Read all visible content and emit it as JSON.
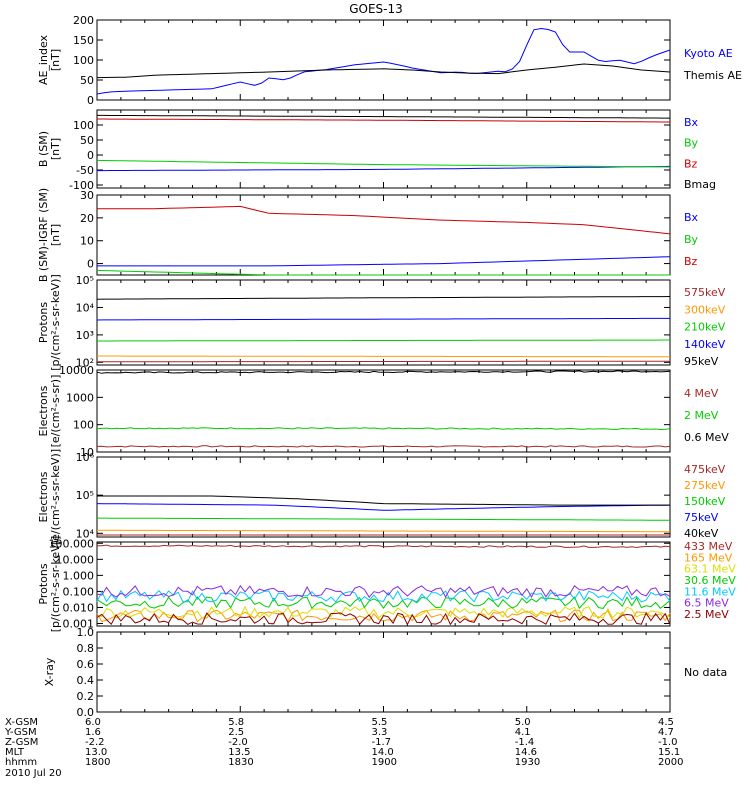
{
  "title": "GOES-13",
  "colors": {
    "black": "#000000",
    "blue": "#0000ff",
    "green": "#00cc00",
    "red": "#cc0000",
    "darkred": "#a52a2a",
    "orange": "#ff9900",
    "yellow": "#dddd00",
    "cyan": "#00c8ff",
    "purple": "#8a2be2",
    "maroon": "#8b0000"
  },
  "chart_data": [
    {
      "type": "line",
      "ylabel": "AE_index\n[nT]",
      "ylim": [
        0,
        200
      ],
      "scale": "linear",
      "ticks": [
        0,
        50,
        100,
        150,
        200
      ],
      "tick_labels": [
        "0",
        "50",
        "100",
        "150",
        "200"
      ],
      "series": [
        {
          "name": "Kyoto AE",
          "color": "#0000ff",
          "x": [
            0,
            0.02,
            0.05,
            0.1,
            0.15,
            0.2,
            0.25,
            0.28,
            0.3,
            0.33,
            0.36,
            0.4,
            0.45,
            0.5,
            0.52,
            0.55,
            0.6,
            0.63,
            0.66,
            0.7,
            0.72,
            0.74,
            0.76,
            0.78,
            0.8,
            0.82,
            0.85,
            0.88,
            0.91,
            0.94,
            0.97,
            1.0
          ],
          "y": [
            15,
            20,
            22,
            24,
            26,
            28,
            45,
            35,
            55,
            50,
            70,
            76,
            88,
            95,
            90,
            80,
            68,
            70,
            66,
            72,
            70,
            100,
            175,
            180,
            170,
            120,
            120,
            95,
            100,
            90,
            110,
            125
          ]
        },
        {
          "name": "Themis AE",
          "color": "#000000",
          "x": [
            0,
            0.05,
            0.1,
            0.2,
            0.3,
            0.4,
            0.5,
            0.55,
            0.6,
            0.65,
            0.7,
            0.75,
            0.8,
            0.85,
            0.9,
            0.95,
            1.0
          ],
          "y": [
            56,
            57,
            62,
            66,
            70,
            75,
            78,
            75,
            70,
            67,
            66,
            75,
            82,
            90,
            85,
            75,
            70
          ]
        }
      ]
    },
    {
      "type": "line",
      "ylabel": "B (SM)\n[nT]",
      "ylim": [
        -110,
        150
      ],
      "scale": "linear",
      "ticks": [
        -100,
        -50,
        0,
        50,
        100
      ],
      "tick_labels": [
        "-100",
        "-50",
        "0",
        "50",
        "100"
      ],
      "series": [
        {
          "name": "Bx",
          "color": "#0000ff",
          "x": [
            0,
            0.5,
            1.0
          ],
          "y": [
            -52,
            -48,
            -38
          ]
        },
        {
          "name": "By",
          "color": "#00cc00",
          "x": [
            0,
            0.5,
            1.0
          ],
          "y": [
            -18,
            -32,
            -40
          ]
        },
        {
          "name": "Bz",
          "color": "#cc0000",
          "x": [
            0,
            0.5,
            1.0
          ],
          "y": [
            120,
            116,
            110
          ]
        },
        {
          "name": "Bmag",
          "color": "#000000",
          "x": [
            0,
            0.5,
            1.0
          ],
          "y": [
            132,
            128,
            123
          ]
        }
      ]
    },
    {
      "type": "line",
      "ylabel": "B (SM)-IGRF (SM)\n[nT]",
      "ylim": [
        -5,
        30
      ],
      "scale": "linear",
      "ticks": [
        0,
        10,
        20,
        30
      ],
      "tick_labels": [
        "0",
        "10",
        "20",
        "30"
      ],
      "series": [
        {
          "name": "Bx",
          "color": "#0000ff",
          "x": [
            0,
            0.3,
            0.6,
            1.0
          ],
          "y": [
            -1,
            -1,
            0,
            3
          ]
        },
        {
          "name": "By",
          "color": "#00cc00",
          "x": [
            0,
            0.3,
            0.6,
            1.0
          ],
          "y": [
            -3,
            -5,
            -7,
            -6
          ]
        },
        {
          "name": "Bz",
          "color": "#cc0000",
          "x": [
            0,
            0.1,
            0.25,
            0.3,
            0.45,
            0.6,
            0.75,
            0.85,
            1.0
          ],
          "y": [
            24,
            24,
            25,
            22,
            21,
            19,
            18,
            17,
            13
          ]
        }
      ]
    },
    {
      "type": "line",
      "ylabel": "Protons\n[p/(cm²-s-sr-keV)]",
      "ylim": [
        80,
        100000
      ],
      "scale": "log",
      "ticks": [
        100,
        1000,
        10000,
        100000
      ],
      "tick_labels": [
        "10²",
        "10³",
        "10⁴",
        "10⁵"
      ],
      "series": [
        {
          "name": "575keV",
          "color": "#a52a2a",
          "x": [
            0,
            1.0
          ],
          "y": [
            105,
            110
          ]
        },
        {
          "name": "300keV",
          "color": "#ff9900",
          "x": [
            0,
            1.0
          ],
          "y": [
            170,
            160
          ]
        },
        {
          "name": "210keV",
          "color": "#00cc00",
          "x": [
            0,
            1.0
          ],
          "y": [
            600,
            650
          ]
        },
        {
          "name": "140keV",
          "color": "#0000ff",
          "x": [
            0,
            1.0
          ],
          "y": [
            3500,
            4000
          ]
        },
        {
          "name": "95keV",
          "color": "#000000",
          "x": [
            0,
            1.0
          ],
          "y": [
            20000,
            25000
          ]
        }
      ]
    },
    {
      "type": "line",
      "ylabel": "Electrons\n[e/(cm²-s-sr)]",
      "ylim": [
        10,
        10000
      ],
      "scale": "log",
      "ticks": [
        10,
        100,
        1000,
        10000
      ],
      "tick_labels": [
        "10",
        "100",
        "1000",
        "10000"
      ],
      "series": [
        {
          "name": "4 MeV",
          "color": "#a52a2a",
          "x": [
            0,
            1.0
          ],
          "y": [
            16,
            16
          ]
        },
        {
          "name": "2 MeV",
          "color": "#00cc00",
          "x": [
            0,
            1.0
          ],
          "y": [
            75,
            70
          ]
        },
        {
          "name": "0.6 MeV",
          "color": "#000000",
          "x": [
            0,
            1.0
          ],
          "y": [
            8000,
            9000
          ]
        }
      ]
    },
    {
      "type": "line",
      "ylabel": "Electrons\n[e/(cm²-s-sr-keV)]",
      "ylim": [
        8000,
        1000000
      ],
      "scale": "log",
      "ticks": [
        10000,
        100000,
        1000000
      ],
      "tick_labels": [
        "10⁴",
        "10⁵",
        "10⁶"
      ],
      "series": [
        {
          "name": "475keV",
          "color": "#a52a2a",
          "x": [
            0,
            1.0
          ],
          "y": [
            9000,
            9000
          ]
        },
        {
          "name": "275keV",
          "color": "#ff9900",
          "x": [
            0,
            1.0
          ],
          "y": [
            12000,
            11000
          ]
        },
        {
          "name": "150keV",
          "color": "#00cc00",
          "x": [
            0,
            1.0
          ],
          "y": [
            25000,
            22000
          ]
        },
        {
          "name": "75keV",
          "color": "#0000ff",
          "x": [
            0,
            0.3,
            0.5,
            0.8,
            1.0
          ],
          "y": [
            60000,
            55000,
            40000,
            50000,
            55000
          ]
        },
        {
          "name": "40keV",
          "color": "#000000",
          "x": [
            0,
            0.2,
            0.35,
            0.5,
            0.8,
            1.0
          ],
          "y": [
            95000,
            95000,
            80000,
            60000,
            55000,
            55000
          ]
        }
      ]
    },
    {
      "type": "line",
      "ylabel": "Protons\n[p/(cm²-s-sr-keV)]",
      "ylim": [
        0.0007,
        120
      ],
      "scale": "log",
      "ticks": [
        0.001,
        0.01,
        0.1,
        1,
        10,
        100
      ],
      "tick_labels": [
        "0.001",
        "0.010",
        "0.100",
        "1.000",
        "10.000",
        "100.000"
      ],
      "series": [
        {
          "name": "433 MeV",
          "color": "#a52a2a",
          "x": [
            0,
            1.0
          ],
          "y": [
            70,
            60
          ]
        },
        {
          "name": "165 MeV",
          "color": "#ff9900",
          "x": [
            0,
            1.0
          ],
          "y": [
            0.003,
            0.003
          ]
        },
        {
          "name": "63.1 MeV",
          "color": "#dddd00",
          "x": [
            0,
            1.0
          ],
          "y": [
            0.005,
            0.005
          ]
        },
        {
          "name": "30.6 MeV",
          "color": "#00cc00",
          "x": [
            0,
            1.0
          ],
          "y": [
            0.02,
            0.02
          ]
        },
        {
          "name": "11.6 MeV",
          "color": "#00c8ff",
          "x": [
            0,
            1.0
          ],
          "y": [
            0.05,
            0.05
          ]
        },
        {
          "name": "6.5 MeV",
          "color": "#8a2be2",
          "x": [
            0,
            1.0
          ],
          "y": [
            0.1,
            0.1
          ]
        },
        {
          "name": "2.5 MeV",
          "color": "#8b0000",
          "x": [
            0,
            1.0
          ],
          "y": [
            0.002,
            0.002
          ]
        }
      ]
    },
    {
      "type": "line",
      "ylabel": "X-ray",
      "ylim": [
        0,
        1.0
      ],
      "scale": "linear",
      "ticks": [
        0,
        0.2,
        0.4,
        0.6,
        0.8,
        1.0
      ],
      "tick_labels": [
        "0.0",
        "0.2",
        "0.4",
        "0.6",
        "0.8",
        "1.0"
      ],
      "series": [],
      "note": "No data"
    }
  ],
  "ephemeris": {
    "row_labels": [
      "X-GSM",
      "Y-GSM",
      "Z-GSM",
      "MLT",
      "hhmm",
      "2010 Jul 20"
    ],
    "columns": [
      [
        "6.0",
        "1.6",
        "-2.2",
        "13.0",
        "1800"
      ],
      [
        "5.8",
        "2.5",
        "-2.0",
        "13.5",
        "1830"
      ],
      [
        "5.5",
        "3.3",
        "-1.7",
        "14.0",
        "1900"
      ],
      [
        "5.0",
        "4.1",
        "-1.4",
        "14.6",
        "1930"
      ],
      [
        "4.5",
        "4.7",
        "-1.0",
        "15.1",
        "2000"
      ]
    ]
  }
}
